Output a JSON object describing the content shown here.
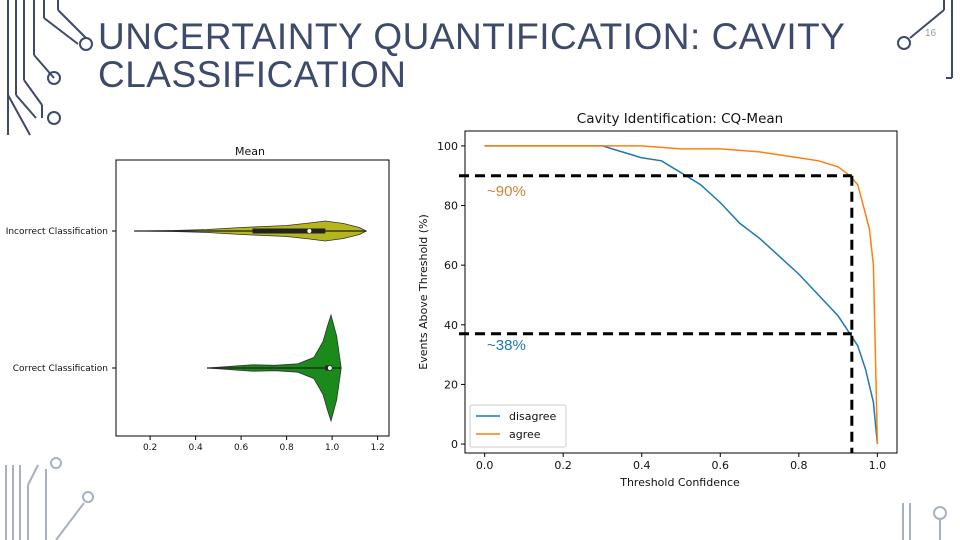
{
  "slide": {
    "title_line1": "UNCERTAINTY QUANTIFICATION: CAVITY",
    "title_line2": "CLASSIFICATION",
    "slide_number": "16"
  },
  "colors": {
    "title": "#3d4a6b",
    "circuit": "#3d4a6b",
    "disagree": "#1f77b4",
    "agree": "#ff7f0e",
    "violin_incorrect": "#b5b520",
    "violin_correct": "#1a8a1a",
    "annot_90": "#c8843a",
    "annot_38": "#1f77b4"
  },
  "annotations": {
    "agree_pct": "~90%",
    "disagree_pct": "~38%"
  },
  "chart_data": [
    {
      "type": "violin",
      "title": "Mean",
      "categories": [
        "Incorrect Classification",
        "Correct Classification"
      ],
      "x_ticks": [
        "0.2",
        "0.4",
        "0.6",
        "0.8",
        "1.0",
        "1.2"
      ],
      "xlim": [
        0.05,
        1.25
      ],
      "series": [
        {
          "name": "Incorrect Classification",
          "min": 0.13,
          "max": 1.15,
          "q1": 0.65,
          "q3": 0.97,
          "median": 0.9,
          "density": [
            [
              0.13,
              0.0
            ],
            [
              0.3,
              0.05
            ],
            [
              0.45,
              0.15
            ],
            [
              0.6,
              0.35
            ],
            [
              0.7,
              0.45
            ],
            [
              0.8,
              0.55
            ],
            [
              0.9,
              0.8
            ],
            [
              0.97,
              1.0
            ],
            [
              1.05,
              0.75
            ],
            [
              1.12,
              0.35
            ],
            [
              1.15,
              0.0
            ]
          ]
        },
        {
          "name": "Correct Classification",
          "min": 0.45,
          "max": 1.04,
          "q1": 0.97,
          "q3": 1.0,
          "median": 0.99,
          "density": [
            [
              0.45,
              0.0
            ],
            [
              0.55,
              0.03
            ],
            [
              0.65,
              0.06
            ],
            [
              0.75,
              0.05
            ],
            [
              0.85,
              0.08
            ],
            [
              0.92,
              0.2
            ],
            [
              0.96,
              0.5
            ],
            [
              0.98,
              0.8
            ],
            [
              0.995,
              1.0
            ],
            [
              1.02,
              0.6
            ],
            [
              1.04,
              0.0
            ]
          ]
        }
      ]
    },
    {
      "type": "line",
      "title": "Cavity Identification: CQ-Mean",
      "xlabel": "Threshold Confidence",
      "ylabel": "Events Above Threshold (%)",
      "xlim": [
        -0.05,
        1.05
      ],
      "ylim": [
        -3,
        105
      ],
      "x_ticks": [
        "0.0",
        "0.2",
        "0.4",
        "0.6",
        "0.8",
        "1.0"
      ],
      "y_ticks": [
        "0",
        "20",
        "40",
        "60",
        "80",
        "100"
      ],
      "legend": [
        "disagree",
        "agree"
      ],
      "legend_position": "lower-left",
      "threshold_x": 0.935,
      "threshold_agree": 90,
      "threshold_disagree": 37,
      "series": [
        {
          "name": "disagree",
          "x": [
            0,
            0.2,
            0.3,
            0.35,
            0.4,
            0.45,
            0.5,
            0.55,
            0.6,
            0.65,
            0.7,
            0.75,
            0.8,
            0.85,
            0.9,
            0.93,
            0.95,
            0.97,
            0.99,
            1.0
          ],
          "y": [
            100,
            100,
            100,
            98,
            96,
            95,
            91,
            87,
            81,
            74,
            69,
            63,
            57,
            50,
            43,
            37,
            33,
            25,
            14,
            0
          ]
        },
        {
          "name": "agree",
          "x": [
            0,
            0.2,
            0.4,
            0.5,
            0.6,
            0.7,
            0.75,
            0.8,
            0.85,
            0.9,
            0.93,
            0.95,
            0.96,
            0.97,
            0.98,
            0.99,
            1.0
          ],
          "y": [
            100,
            100,
            100,
            99,
            99,
            98,
            97,
            96,
            95,
            93,
            90,
            87,
            82,
            77,
            72,
            60,
            0
          ]
        }
      ]
    }
  ]
}
